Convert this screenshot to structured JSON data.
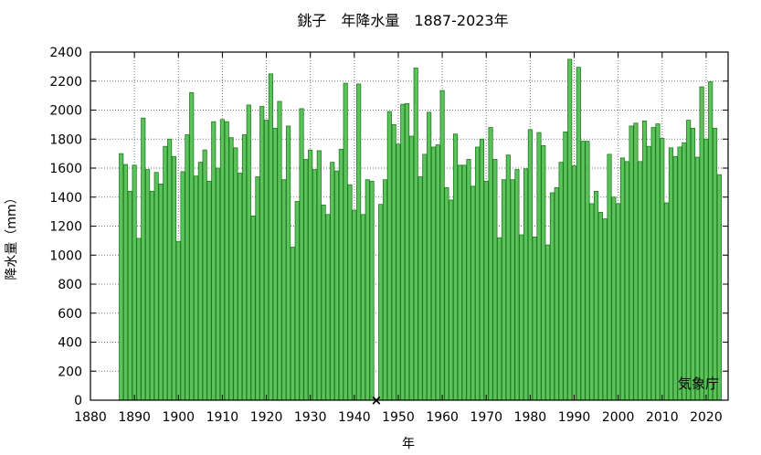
{
  "chart_data": {
    "type": "bar",
    "title": "銚子　年降水量　1887-2023年",
    "xlabel": "年",
    "ylabel": "降水量（mm）",
    "credit": "気象庁",
    "xlim": [
      1880,
      2025
    ],
    "ylim": [
      0,
      2400
    ],
    "xticks": [
      1880,
      1890,
      1900,
      1910,
      1920,
      1930,
      1940,
      1950,
      1960,
      1970,
      1980,
      1990,
      2000,
      2010,
      2020
    ],
    "yticks": [
      0,
      200,
      400,
      600,
      800,
      1000,
      1200,
      1400,
      1600,
      1800,
      2000,
      2200,
      2400
    ],
    "grid": true,
    "bar_color": "#5cc35c",
    "bar_edge_color": "#1f7a1f",
    "missing_marker": "×",
    "missing_years": [
      1945
    ],
    "years": [
      1887,
      1888,
      1889,
      1890,
      1891,
      1892,
      1893,
      1894,
      1895,
      1896,
      1897,
      1898,
      1899,
      1900,
      1901,
      1902,
      1903,
      1904,
      1905,
      1906,
      1907,
      1908,
      1909,
      1910,
      1911,
      1912,
      1913,
      1914,
      1915,
      1916,
      1917,
      1918,
      1919,
      1920,
      1921,
      1922,
      1923,
      1924,
      1925,
      1926,
      1927,
      1928,
      1929,
      1930,
      1931,
      1932,
      1933,
      1934,
      1935,
      1936,
      1937,
      1938,
      1939,
      1940,
      1941,
      1942,
      1943,
      1944,
      1945,
      1946,
      1947,
      1948,
      1949,
      1950,
      1951,
      1952,
      1953,
      1954,
      1955,
      1956,
      1957,
      1958,
      1959,
      1960,
      1961,
      1962,
      1963,
      1964,
      1965,
      1966,
      1967,
      1968,
      1969,
      1970,
      1971,
      1972,
      1973,
      1974,
      1975,
      1976,
      1977,
      1978,
      1979,
      1980,
      1981,
      1982,
      1983,
      1984,
      1985,
      1986,
      1987,
      1988,
      1989,
      1990,
      1991,
      1992,
      1993,
      1994,
      1995,
      1996,
      1997,
      1998,
      1999,
      2000,
      2001,
      2002,
      2003,
      2004,
      2005,
      2006,
      2007,
      2008,
      2009,
      2010,
      2011,
      2012,
      2013,
      2014,
      2015,
      2016,
      2017,
      2018,
      2019,
      2020,
      2021,
      2022,
      2023
    ],
    "values": [
      1700,
      1625,
      1440,
      1620,
      1115,
      1945,
      1590,
      1440,
      1570,
      1490,
      1750,
      1800,
      1680,
      1095,
      1575,
      1830,
      2120,
      1545,
      1640,
      1725,
      1510,
      1920,
      1600,
      1935,
      1920,
      1810,
      1740,
      1565,
      1830,
      2035,
      1270,
      1540,
      2025,
      1930,
      2250,
      1875,
      2060,
      1520,
      1890,
      1055,
      1370,
      2010,
      1660,
      1725,
      1590,
      1720,
      1345,
      1280,
      1640,
      1580,
      1730,
      2185,
      1485,
      1310,
      2180,
      1280,
      1520,
      1510,
      null,
      1350,
      1520,
      1990,
      1900,
      1765,
      2040,
      2045,
      1820,
      2290,
      1540,
      1695,
      1985,
      1745,
      1760,
      2135,
      1465,
      1380,
      1835,
      1620,
      1620,
      1660,
      1475,
      1745,
      1800,
      1510,
      1880,
      1660,
      1120,
      1520,
      1690,
      1520,
      1590,
      1140,
      1595,
      1865,
      1125,
      1845,
      1755,
      1070,
      1430,
      1465,
      1640,
      1850,
      2350,
      1615,
      2295,
      1785,
      1785,
      1355,
      1440,
      1295,
      1250,
      1695,
      1400,
      1355,
      1670,
      1645,
      1890,
      1910,
      1645,
      1925,
      1750,
      1880,
      1905,
      1805,
      1360,
      1740,
      1680,
      1745,
      1775,
      1930,
      1875,
      1675,
      2160,
      1800,
      2195,
      1875,
      1555
    ]
  }
}
